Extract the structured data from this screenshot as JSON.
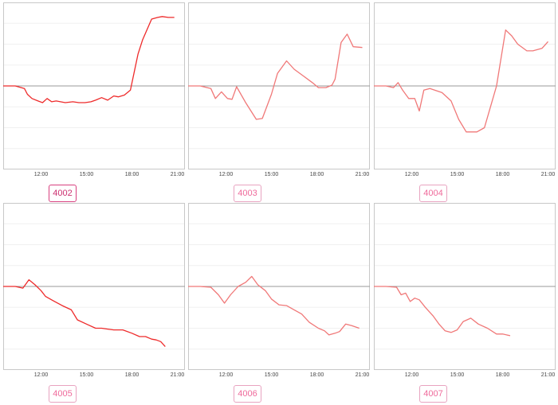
{
  "chart_data": [
    {
      "type": "line",
      "label": "4002",
      "active": true,
      "x_ticks": [
        "12:00",
        "15:00",
        "18:00",
        "21:00"
      ],
      "xlim": [
        9.5,
        21.5
      ],
      "ylim": [
        -1,
        1
      ],
      "grid": true,
      "line_color": "#ee2a2a",
      "x": [
        9.5,
        10.3,
        10.9,
        11.1,
        11.4,
        11.8,
        12.1,
        12.4,
        12.7,
        13.0,
        13.6,
        14.1,
        14.5,
        14.9,
        15.3,
        15.6,
        16.0,
        16.4,
        16.8,
        17.1,
        17.5,
        17.9,
        18.4,
        18.7,
        19.3,
        19.7,
        20.0,
        20.4,
        20.8
      ],
      "values": [
        0.0,
        0.0,
        -0.03,
        -0.1,
        -0.15,
        -0.18,
        -0.2,
        -0.15,
        -0.19,
        -0.18,
        -0.2,
        -0.19,
        -0.2,
        -0.2,
        -0.19,
        -0.17,
        -0.14,
        -0.17,
        -0.12,
        -0.13,
        -0.11,
        -0.05,
        0.38,
        0.55,
        0.8,
        0.82,
        0.83,
        0.82,
        0.82
      ]
    },
    {
      "type": "line",
      "label": "4003",
      "active": false,
      "x_ticks": [
        "12:00",
        "15:00",
        "18:00",
        "21:00"
      ],
      "xlim": [
        9.5,
        21.5
      ],
      "ylim": [
        -1,
        1
      ],
      "grid": true,
      "line_color": "#f07878",
      "x": [
        9.5,
        10.3,
        11.0,
        11.3,
        11.7,
        12.1,
        12.4,
        12.7,
        13.3,
        14.0,
        14.4,
        15.0,
        15.4,
        16.0,
        16.5,
        17.1,
        17.7,
        18.1,
        18.6,
        19.0,
        19.2,
        19.6,
        20.0,
        20.4,
        21.0
      ],
      "values": [
        0.0,
        0.0,
        -0.03,
        -0.15,
        -0.07,
        -0.15,
        -0.16,
        -0.01,
        -0.2,
        -0.4,
        -0.39,
        -0.1,
        0.15,
        0.3,
        0.2,
        0.12,
        0.04,
        -0.02,
        -0.02,
        0.01,
        0.08,
        0.52,
        0.62,
        0.47,
        0.46
      ]
    },
    {
      "type": "line",
      "label": "4004",
      "active": false,
      "x_ticks": [
        "12:00",
        "15:00",
        "18:00",
        "21:00"
      ],
      "xlim": [
        9.5,
        21.5
      ],
      "ylim": [
        -1,
        1
      ],
      "grid": true,
      "line_color": "#f07878",
      "x": [
        9.5,
        10.3,
        10.8,
        11.1,
        11.4,
        11.8,
        12.2,
        12.5,
        12.8,
        13.2,
        14.0,
        14.6,
        15.1,
        15.6,
        16.0,
        16.3,
        16.8,
        17.2,
        17.6,
        18.2,
        18.6,
        19.0,
        19.6,
        20.0,
        20.6,
        21.0
      ],
      "values": [
        0.0,
        0.0,
        -0.02,
        0.04,
        -0.05,
        -0.15,
        -0.15,
        -0.3,
        -0.05,
        -0.03,
        -0.08,
        -0.18,
        -0.4,
        -0.55,
        -0.55,
        -0.55,
        -0.5,
        -0.25,
        0.0,
        0.67,
        0.6,
        0.5,
        0.42,
        0.42,
        0.45,
        0.53
      ]
    },
    {
      "type": "line",
      "label": "4005",
      "active": false,
      "x_ticks": [
        "12:00",
        "15:00",
        "18:00",
        "21:00"
      ],
      "xlim": [
        9.5,
        21.5
      ],
      "ylim": [
        -1,
        1
      ],
      "grid": true,
      "line_color": "#ee2a2a",
      "x": [
        9.5,
        10.3,
        10.8,
        11.2,
        11.6,
        12.0,
        12.3,
        12.8,
        13.4,
        14.0,
        14.4,
        15.0,
        15.6,
        16.0,
        16.4,
        16.8,
        17.4,
        18.0,
        18.5,
        18.9,
        19.3,
        19.6,
        19.9,
        20.2
      ],
      "values": [
        0.0,
        0.0,
        -0.02,
        0.08,
        0.02,
        -0.05,
        -0.12,
        -0.17,
        -0.23,
        -0.28,
        -0.4,
        -0.45,
        -0.5,
        -0.5,
        -0.51,
        -0.52,
        -0.52,
        -0.56,
        -0.6,
        -0.6,
        -0.63,
        -0.64,
        -0.66,
        -0.72
      ]
    },
    {
      "type": "line",
      "label": "4006",
      "active": false,
      "x_ticks": [
        "12:00",
        "15:00",
        "18:00",
        "21:00"
      ],
      "xlim": [
        9.5,
        21.5
      ],
      "ylim": [
        -1,
        1
      ],
      "grid": true,
      "line_color": "#f07878",
      "x": [
        9.5,
        10.3,
        11.0,
        11.5,
        11.9,
        12.3,
        12.8,
        13.3,
        13.7,
        14.1,
        14.6,
        15.0,
        15.5,
        16.0,
        16.5,
        17.0,
        17.5,
        18.1,
        18.5,
        18.8,
        19.2,
        19.5,
        19.9,
        20.3,
        20.8
      ],
      "values": [
        0.0,
        0.0,
        -0.01,
        -0.1,
        -0.2,
        -0.1,
        0.0,
        0.05,
        0.12,
        0.02,
        -0.05,
        -0.15,
        -0.22,
        -0.23,
        -0.28,
        -0.33,
        -0.43,
        -0.5,
        -0.53,
        -0.58,
        -0.56,
        -0.54,
        -0.45,
        -0.47,
        -0.5
      ]
    },
    {
      "type": "line",
      "label": "4007",
      "active": false,
      "x_ticks": [
        "12:00",
        "15:00",
        "18:00",
        "21:00"
      ],
      "xlim": [
        9.5,
        21.5
      ],
      "ylim": [
        -1,
        1
      ],
      "grid": true,
      "line_color": "#f07878",
      "x": [
        9.5,
        10.3,
        11.0,
        11.3,
        11.6,
        11.9,
        12.2,
        12.5,
        12.9,
        13.4,
        13.8,
        14.2,
        14.6,
        15.0,
        15.4,
        15.9,
        16.4,
        17.0,
        17.6,
        18.0,
        18.5
      ],
      "values": [
        0.0,
        0.0,
        -0.01,
        -0.1,
        -0.08,
        -0.18,
        -0.14,
        -0.16,
        -0.25,
        -0.35,
        -0.45,
        -0.53,
        -0.55,
        -0.52,
        -0.42,
        -0.38,
        -0.45,
        -0.5,
        -0.57,
        -0.57,
        -0.59
      ]
    }
  ]
}
